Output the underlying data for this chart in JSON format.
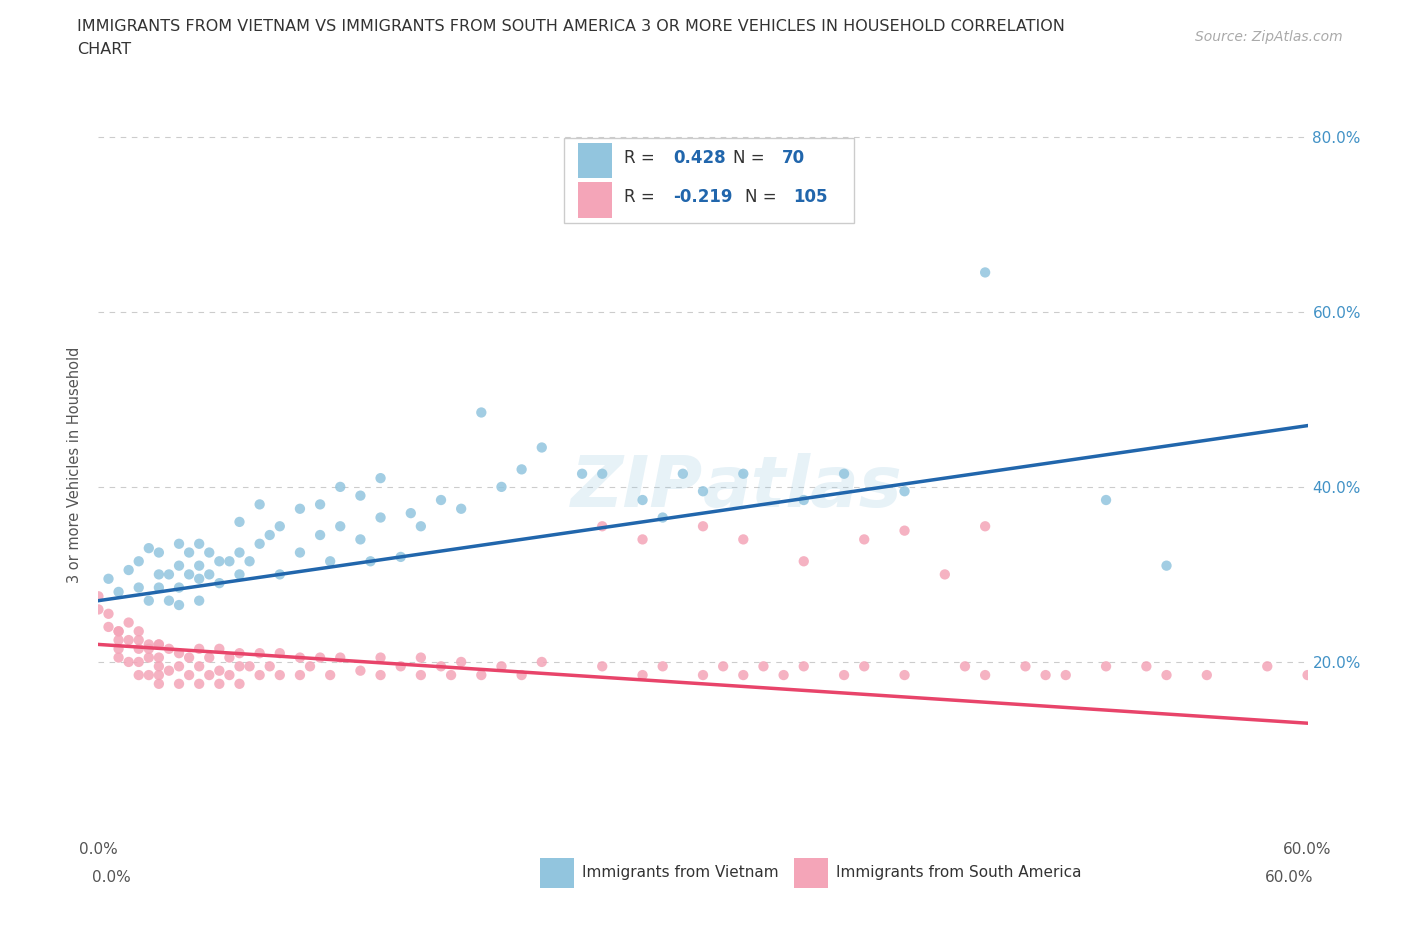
{
  "title_line1": "IMMIGRANTS FROM VIETNAM VS IMMIGRANTS FROM SOUTH AMERICA 3 OR MORE VEHICLES IN HOUSEHOLD CORRELATION",
  "title_line2": "CHART",
  "source": "Source: ZipAtlas.com",
  "ylabel": "3 or more Vehicles in Household",
  "xlim": [
    0.0,
    0.6
  ],
  "ylim": [
    0.0,
    0.85
  ],
  "x_ticks": [
    0.0,
    0.1,
    0.2,
    0.3,
    0.4,
    0.5,
    0.6
  ],
  "x_tick_labels": [
    "0.0%",
    "",
    "",
    "",
    "",
    "",
    "60.0%"
  ],
  "y_ticks": [
    0.0,
    0.1,
    0.2,
    0.3,
    0.4,
    0.5,
    0.6,
    0.7,
    0.8
  ],
  "y_tick_labels_right": [
    "",
    "",
    "20.0%",
    "",
    "40.0%",
    "",
    "60.0%",
    "",
    "80.0%"
  ],
  "legend_label1": "Immigrants from Vietnam",
  "legend_label2": "Immigrants from South America",
  "R1": "0.428",
  "N1": "70",
  "R2": "-0.219",
  "N2": "105",
  "color_blue": "#92c5de",
  "color_pink": "#f4a5b8",
  "line_color_blue": "#2166ac",
  "line_color_pink": "#e8446a",
  "blue_scatter_x": [
    0.005,
    0.01,
    0.015,
    0.02,
    0.02,
    0.025,
    0.025,
    0.03,
    0.03,
    0.03,
    0.035,
    0.035,
    0.04,
    0.04,
    0.04,
    0.04,
    0.045,
    0.045,
    0.05,
    0.05,
    0.05,
    0.05,
    0.055,
    0.055,
    0.06,
    0.06,
    0.065,
    0.07,
    0.07,
    0.07,
    0.075,
    0.08,
    0.08,
    0.085,
    0.09,
    0.09,
    0.1,
    0.1,
    0.11,
    0.11,
    0.115,
    0.12,
    0.12,
    0.13,
    0.13,
    0.135,
    0.14,
    0.14,
    0.15,
    0.155,
    0.16,
    0.17,
    0.18,
    0.19,
    0.2,
    0.21,
    0.22,
    0.24,
    0.25,
    0.27,
    0.28,
    0.29,
    0.3,
    0.32,
    0.35,
    0.37,
    0.4,
    0.44,
    0.5,
    0.53
  ],
  "blue_scatter_y": [
    0.295,
    0.28,
    0.305,
    0.285,
    0.315,
    0.27,
    0.33,
    0.285,
    0.3,
    0.325,
    0.27,
    0.3,
    0.265,
    0.285,
    0.31,
    0.335,
    0.3,
    0.325,
    0.27,
    0.295,
    0.31,
    0.335,
    0.3,
    0.325,
    0.29,
    0.315,
    0.315,
    0.3,
    0.325,
    0.36,
    0.315,
    0.335,
    0.38,
    0.345,
    0.3,
    0.355,
    0.325,
    0.375,
    0.345,
    0.38,
    0.315,
    0.355,
    0.4,
    0.34,
    0.39,
    0.315,
    0.365,
    0.41,
    0.32,
    0.37,
    0.355,
    0.385,
    0.375,
    0.485,
    0.4,
    0.42,
    0.445,
    0.415,
    0.415,
    0.385,
    0.365,
    0.415,
    0.395,
    0.415,
    0.385,
    0.415,
    0.395,
    0.645,
    0.385,
    0.31
  ],
  "pink_scatter_x": [
    0.0,
    0.0,
    0.005,
    0.005,
    0.01,
    0.01,
    0.01,
    0.01,
    0.01,
    0.015,
    0.015,
    0.015,
    0.02,
    0.02,
    0.02,
    0.02,
    0.02,
    0.025,
    0.025,
    0.025,
    0.025,
    0.03,
    0.03,
    0.03,
    0.03,
    0.03,
    0.03,
    0.035,
    0.035,
    0.04,
    0.04,
    0.04,
    0.045,
    0.045,
    0.05,
    0.05,
    0.05,
    0.055,
    0.055,
    0.06,
    0.06,
    0.06,
    0.065,
    0.065,
    0.07,
    0.07,
    0.07,
    0.075,
    0.08,
    0.08,
    0.085,
    0.09,
    0.09,
    0.1,
    0.1,
    0.105,
    0.11,
    0.115,
    0.12,
    0.13,
    0.14,
    0.14,
    0.15,
    0.16,
    0.16,
    0.17,
    0.175,
    0.18,
    0.19,
    0.2,
    0.21,
    0.22,
    0.25,
    0.27,
    0.28,
    0.3,
    0.31,
    0.32,
    0.33,
    0.34,
    0.35,
    0.37,
    0.38,
    0.4,
    0.43,
    0.44,
    0.46,
    0.48,
    0.52,
    0.55,
    0.58,
    0.6,
    0.25,
    0.27,
    0.3,
    0.32,
    0.35,
    0.38,
    0.4,
    0.42,
    0.44,
    0.47,
    0.5,
    0.53
  ],
  "pink_scatter_y": [
    0.275,
    0.26,
    0.255,
    0.24,
    0.235,
    0.225,
    0.215,
    0.235,
    0.205,
    0.245,
    0.225,
    0.2,
    0.225,
    0.215,
    0.235,
    0.2,
    0.185,
    0.22,
    0.205,
    0.185,
    0.215,
    0.22,
    0.205,
    0.22,
    0.185,
    0.195,
    0.175,
    0.215,
    0.19,
    0.21,
    0.195,
    0.175,
    0.205,
    0.185,
    0.215,
    0.195,
    0.175,
    0.205,
    0.185,
    0.215,
    0.19,
    0.175,
    0.205,
    0.185,
    0.21,
    0.195,
    0.175,
    0.195,
    0.21,
    0.185,
    0.195,
    0.21,
    0.185,
    0.205,
    0.185,
    0.195,
    0.205,
    0.185,
    0.205,
    0.19,
    0.205,
    0.185,
    0.195,
    0.185,
    0.205,
    0.195,
    0.185,
    0.2,
    0.185,
    0.195,
    0.185,
    0.2,
    0.195,
    0.185,
    0.195,
    0.185,
    0.195,
    0.185,
    0.195,
    0.185,
    0.195,
    0.185,
    0.195,
    0.185,
    0.195,
    0.185,
    0.195,
    0.185,
    0.195,
    0.185,
    0.195,
    0.185,
    0.355,
    0.34,
    0.355,
    0.34,
    0.315,
    0.34,
    0.35,
    0.3,
    0.355,
    0.185,
    0.195,
    0.185
  ],
  "blue_trend_x": [
    0.0,
    0.6
  ],
  "blue_trend_y": [
    0.27,
    0.47
  ],
  "pink_trend_x": [
    0.0,
    0.6
  ],
  "pink_trend_y": [
    0.22,
    0.13
  ],
  "background_color": "#ffffff",
  "grid_color": "#cccccc"
}
